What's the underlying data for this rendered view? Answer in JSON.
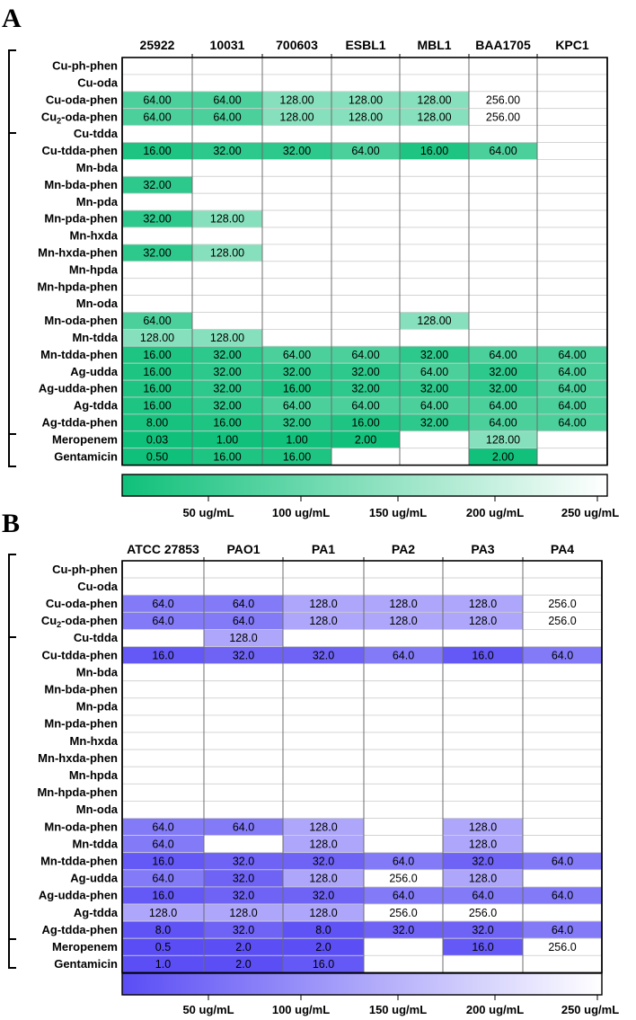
{
  "chart_data": [
    {
      "panel": "A",
      "type": "heatmap",
      "columns": [
        "25922",
        "10031",
        "700603",
        "ESBL1",
        "MBL1",
        "BAA1705",
        "KPC1"
      ],
      "rows": [
        "Cu-ph-phen",
        "Cu-oda",
        "Cu-oda-phen",
        "Cu2-oda-phen",
        "Cu-tdda",
        "Cu-tdda-phen",
        "Mn-bda",
        "Mn-bda-phen",
        "Mn-pda",
        "Mn-pda-phen",
        "Mn-hxda",
        "Mn-hxda-phen",
        "Mn-hpda",
        "Mn-hpda-phen",
        "Mn-oda",
        "Mn-oda-phen",
        "Mn-tdda",
        "Mn-tdda-phen",
        "Ag-udda",
        "Ag-udda-phen",
        "Ag-tdda",
        "Ag-tdda-phen",
        "Meropenem",
        "Gentamicin"
      ],
      "values": [
        [
          null,
          null,
          null,
          null,
          null,
          null,
          null
        ],
        [
          null,
          null,
          null,
          null,
          null,
          null,
          null
        ],
        [
          "64.00",
          "64.00",
          "128.00",
          "128.00",
          "128.00",
          "256.00",
          null
        ],
        [
          "64.00",
          "64.00",
          "128.00",
          "128.00",
          "128.00",
          "256.00",
          null
        ],
        [
          null,
          null,
          null,
          null,
          null,
          null,
          null
        ],
        [
          "16.00",
          "32.00",
          "32.00",
          "64.00",
          "16.00",
          "64.00",
          null
        ],
        [
          null,
          null,
          null,
          null,
          null,
          null,
          null
        ],
        [
          "32.00",
          null,
          null,
          null,
          null,
          null,
          null
        ],
        [
          null,
          null,
          null,
          null,
          null,
          null,
          null
        ],
        [
          "32.00",
          "128.00",
          null,
          null,
          null,
          null,
          null
        ],
        [
          null,
          null,
          null,
          null,
          null,
          null,
          null
        ],
        [
          "32.00",
          "128.00",
          null,
          null,
          null,
          null,
          null
        ],
        [
          null,
          null,
          null,
          null,
          null,
          null,
          null
        ],
        [
          null,
          null,
          null,
          null,
          null,
          null,
          null
        ],
        [
          null,
          null,
          null,
          null,
          null,
          null,
          null
        ],
        [
          "64.00",
          null,
          null,
          null,
          "128.00",
          null,
          null
        ],
        [
          "128.00",
          "128.00",
          null,
          null,
          null,
          null,
          null
        ],
        [
          "16.00",
          "32.00",
          "64.00",
          "64.00",
          "32.00",
          "64.00",
          "64.00"
        ],
        [
          "16.00",
          "32.00",
          "32.00",
          "32.00",
          "64.00",
          "32.00",
          "64.00"
        ],
        [
          "16.00",
          "32.00",
          "16.00",
          "32.00",
          "32.00",
          "32.00",
          "64.00"
        ],
        [
          "16.00",
          "32.00",
          "64.00",
          "64.00",
          "64.00",
          "64.00",
          "64.00"
        ],
        [
          "8.00",
          "16.00",
          "32.00",
          "16.00",
          "32.00",
          "64.00",
          "64.00"
        ],
        [
          "0.03",
          "1.00",
          "1.00",
          "2.00",
          null,
          "128.00",
          null
        ],
        [
          "0.50",
          "16.00",
          "16.00",
          null,
          null,
          "2.00",
          null
        ]
      ],
      "color_scale": {
        "labels": [
          "50 ug/mL",
          "100 ug/mL",
          "150 ug/mL",
          "200 ug/mL",
          "250 ug/mL"
        ],
        "range": [
          0,
          256
        ],
        "min_color": "#0fc07a",
        "max_color": "#ffffff"
      }
    },
    {
      "panel": "B",
      "type": "heatmap",
      "columns": [
        "ATCC 27853",
        "PAO1",
        "PA1",
        "PA2",
        "PA3",
        "PA4"
      ],
      "rows": [
        "Cu-ph-phen",
        "Cu-oda",
        "Cu-oda-phen",
        "Cu2-oda-phen",
        "Cu-tdda",
        "Cu-tdda-phen",
        "Mn-bda",
        "Mn-bda-phen",
        "Mn-pda",
        "Mn-pda-phen",
        "Mn-hxda",
        "Mn-hxda-phen",
        "Mn-hpda",
        "Mn-hpda-phen",
        "Mn-oda",
        "Mn-oda-phen",
        "Mn-tdda",
        "Mn-tdda-phen",
        "Ag-udda",
        "Ag-udda-phen",
        "Ag-tdda",
        "Ag-tdda-phen",
        "Meropenem",
        "Gentamicin"
      ],
      "values": [
        [
          null,
          null,
          null,
          null,
          null,
          null
        ],
        [
          null,
          null,
          null,
          null,
          null,
          null
        ],
        [
          "64.0",
          "64.0",
          "128.0",
          "128.0",
          "128.0",
          "256.0"
        ],
        [
          "64.0",
          "64.0",
          "128.0",
          "128.0",
          "128.0",
          "256.0"
        ],
        [
          null,
          "128.0",
          null,
          null,
          null,
          null
        ],
        [
          "16.0",
          "32.0",
          "32.0",
          "64.0",
          "16.0",
          "64.0"
        ],
        [
          null,
          null,
          null,
          null,
          null,
          null
        ],
        [
          null,
          null,
          null,
          null,
          null,
          null
        ],
        [
          null,
          null,
          null,
          null,
          null,
          null
        ],
        [
          null,
          null,
          null,
          null,
          null,
          null
        ],
        [
          null,
          null,
          null,
          null,
          null,
          null
        ],
        [
          null,
          null,
          null,
          null,
          null,
          null
        ],
        [
          null,
          null,
          null,
          null,
          null,
          null
        ],
        [
          null,
          null,
          null,
          null,
          null,
          null
        ],
        [
          null,
          null,
          null,
          null,
          null,
          null
        ],
        [
          "64.0",
          "64.0",
          "128.0",
          null,
          "128.0",
          null
        ],
        [
          "64.0",
          null,
          "128.0",
          null,
          "128.0",
          null
        ],
        [
          "16.0",
          "32.0",
          "32.0",
          "64.0",
          "32.0",
          "64.0"
        ],
        [
          "64.0",
          "32.0",
          "128.0",
          "256.0",
          "128.0",
          null
        ],
        [
          "16.0",
          "32.0",
          "32.0",
          "64.0",
          "64.0",
          "64.0"
        ],
        [
          "128.0",
          "128.0",
          "128.0",
          "256.0",
          "256.0",
          null
        ],
        [
          "8.0",
          "32.0",
          "8.0",
          "32.0",
          "32.0",
          "64.0"
        ],
        [
          "0.5",
          "2.0",
          "2.0",
          null,
          "16.0",
          "256.0"
        ],
        [
          "1.0",
          "2.0",
          "16.0",
          null,
          null,
          null
        ]
      ],
      "color_scale": {
        "labels": [
          "50 ug/mL",
          "100 ug/mL",
          "150 ug/mL",
          "200 ug/mL",
          "250 ug/mL"
        ],
        "range": [
          0,
          256
        ],
        "min_color": "#5a4df5",
        "max_color": "#ffffff"
      }
    }
  ]
}
